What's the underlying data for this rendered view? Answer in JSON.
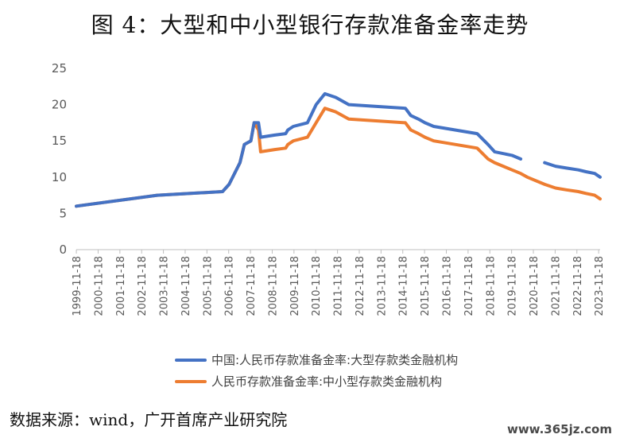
{
  "title": "图 4：大型和中小型银行存款准备金率走势",
  "source": "数据来源：wind，广开首席产业研究院",
  "watermark": "www.365jz.com",
  "chart_data": {
    "type": "line",
    "title": "图 4：大型和中小型银行存款准备金率走势",
    "xlabel": "",
    "ylabel": "",
    "ylim": [
      0,
      25
    ],
    "yticks": [
      0,
      5,
      10,
      15,
      20,
      25
    ],
    "xlim": [
      1999.88,
      2023.95
    ],
    "xticks": [
      "1999-11-18",
      "2000-11-18",
      "2001-11-18",
      "2002-11-18",
      "2003-11-18",
      "2004-11-18",
      "2005-11-18",
      "2006-11-18",
      "2007-11-18",
      "2008-11-18",
      "2009-11-18",
      "2010-11-18",
      "2011-11-18",
      "2012-11-18",
      "2013-11-18",
      "2014-11-18",
      "2015-11-18",
      "2016-11-18",
      "2017-11-18",
      "2018-11-18",
      "2019-11-18",
      "2020-11-18",
      "2021-11-18",
      "2022-11-18",
      "2023-11-18"
    ],
    "grid": false,
    "legend_position": "bottom",
    "series": [
      {
        "name": "中国:人民币存款准备金率:大型存款类金融机构",
        "color": "#4472C4",
        "segments": [
          [
            [
              1999.88,
              6
            ],
            [
              2003.6,
              7.5
            ],
            [
              2006.6,
              8
            ],
            [
              2006.9,
              9
            ],
            [
              2007.4,
              12
            ],
            [
              2007.6,
              14.5
            ],
            [
              2007.9,
              15
            ],
            [
              2008.05,
              17.5
            ],
            [
              2008.25,
              17.5
            ],
            [
              2008.35,
              15.5
            ],
            [
              2009.0,
              15.8
            ],
            [
              2009.5,
              16
            ],
            [
              2009.6,
              16.5
            ],
            [
              2009.85,
              17
            ],
            [
              2010.5,
              17.5
            ],
            [
              2010.9,
              20
            ],
            [
              2011.3,
              21.5
            ],
            [
              2011.8,
              21
            ],
            [
              2012.4,
              20
            ],
            [
              2015.0,
              19.5
            ],
            [
              2015.25,
              18.5
            ],
            [
              2015.6,
              18
            ],
            [
              2015.9,
              17.5
            ],
            [
              2016.3,
              17
            ],
            [
              2018.3,
              16
            ],
            [
              2018.8,
              14.5
            ],
            [
              2019.1,
              13.5
            ],
            [
              2019.9,
              13
            ],
            [
              2020.3,
              12.5
            ]
          ],
          [
            [
              2021.4,
              12
            ],
            [
              2021.9,
              11.5
            ],
            [
              2022.4,
              11.25
            ],
            [
              2022.95,
              11
            ],
            [
              2023.3,
              10.75
            ],
            [
              2023.7,
              10.5
            ],
            [
              2023.95,
              10
            ]
          ]
        ]
      },
      {
        "name": "人民币存款准备金率:中小型存款类金融机构",
        "color": "#ED7D31",
        "segments": [
          [
            [
              1999.88,
              6
            ],
            [
              2003.6,
              7.5
            ],
            [
              2006.6,
              8
            ],
            [
              2006.9,
              9
            ],
            [
              2007.4,
              12
            ],
            [
              2007.6,
              14.5
            ],
            [
              2007.9,
              15
            ],
            [
              2008.05,
              17.5
            ],
            [
              2008.25,
              16.5
            ],
            [
              2008.35,
              13.5
            ],
            [
              2009.0,
              13.8
            ],
            [
              2009.5,
              14
            ],
            [
              2009.6,
              14.5
            ],
            [
              2009.85,
              15
            ],
            [
              2010.5,
              15.5
            ],
            [
              2010.9,
              17.5
            ],
            [
              2011.3,
              19.5
            ],
            [
              2011.8,
              19
            ],
            [
              2012.4,
              18
            ],
            [
              2015.0,
              17.5
            ],
            [
              2015.25,
              16.5
            ],
            [
              2015.6,
              16
            ],
            [
              2015.9,
              15.5
            ],
            [
              2016.3,
              15
            ],
            [
              2018.3,
              14
            ],
            [
              2018.8,
              12.5
            ],
            [
              2019.1,
              12
            ],
            [
              2019.9,
              11
            ],
            [
              2020.3,
              10.5
            ],
            [
              2020.6,
              10
            ],
            [
              2021.4,
              9
            ],
            [
              2021.9,
              8.5
            ],
            [
              2022.4,
              8.25
            ],
            [
              2022.95,
              8
            ],
            [
              2023.3,
              7.75
            ],
            [
              2023.7,
              7.5
            ],
            [
              2023.95,
              7
            ]
          ]
        ]
      }
    ]
  }
}
